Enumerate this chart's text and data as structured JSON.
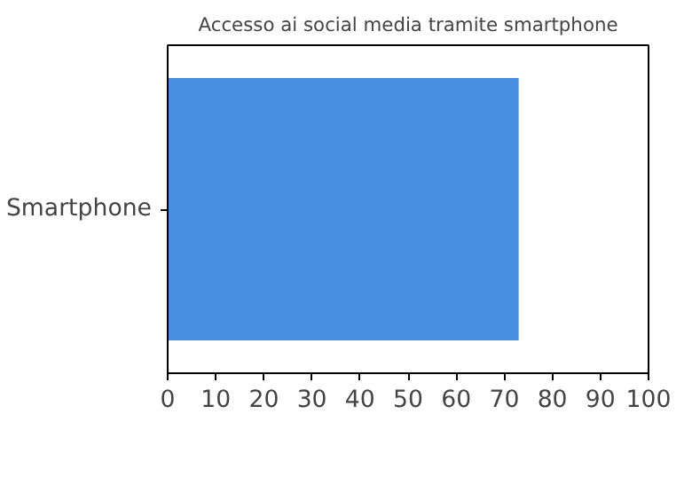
{
  "chart_data": {
    "type": "bar",
    "orientation": "horizontal",
    "title": "Accesso ai social media tramite smartphone",
    "categories": [
      "Smartphone"
    ],
    "values": [
      73
    ],
    "color": "#4a90e2",
    "xlim": [
      0,
      100
    ],
    "xticks": [
      0,
      10,
      20,
      30,
      40,
      50,
      60,
      70,
      80,
      90,
      100
    ],
    "grid": false
  }
}
